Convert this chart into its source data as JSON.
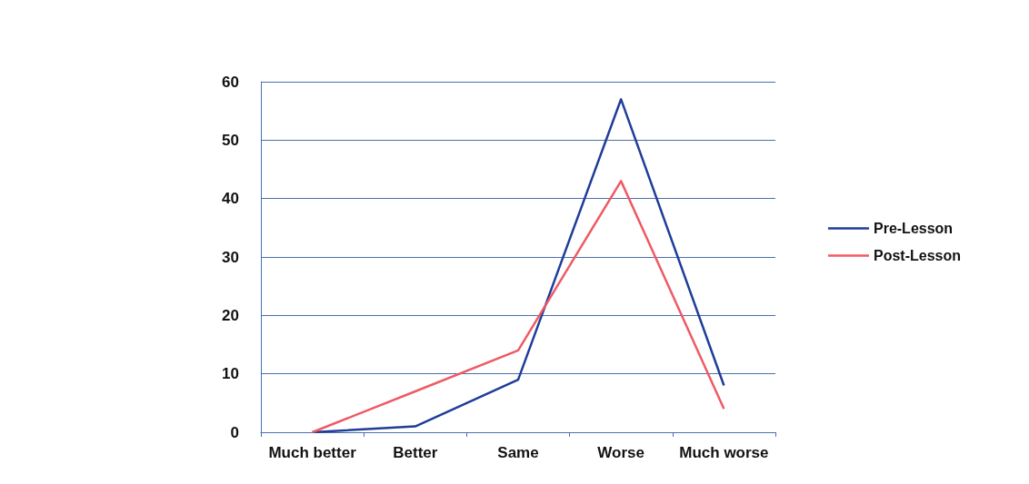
{
  "chart_data": {
    "type": "line",
    "categories": [
      "Much better",
      "Better",
      "Same",
      "Worse",
      "Much worse"
    ],
    "series": [
      {
        "name": "Pre-Lesson",
        "color": "#1f3d99",
        "values": [
          0,
          1,
          9,
          57,
          8
        ]
      },
      {
        "name": "Post-Lesson",
        "color": "#ef5a64",
        "values": [
          0,
          7,
          14,
          43,
          4
        ]
      }
    ],
    "ylim": [
      0,
      60
    ],
    "yticks": [
      0,
      10,
      20,
      30,
      40,
      50,
      60
    ],
    "grid": "y",
    "legend": "right",
    "marker": "none"
  }
}
